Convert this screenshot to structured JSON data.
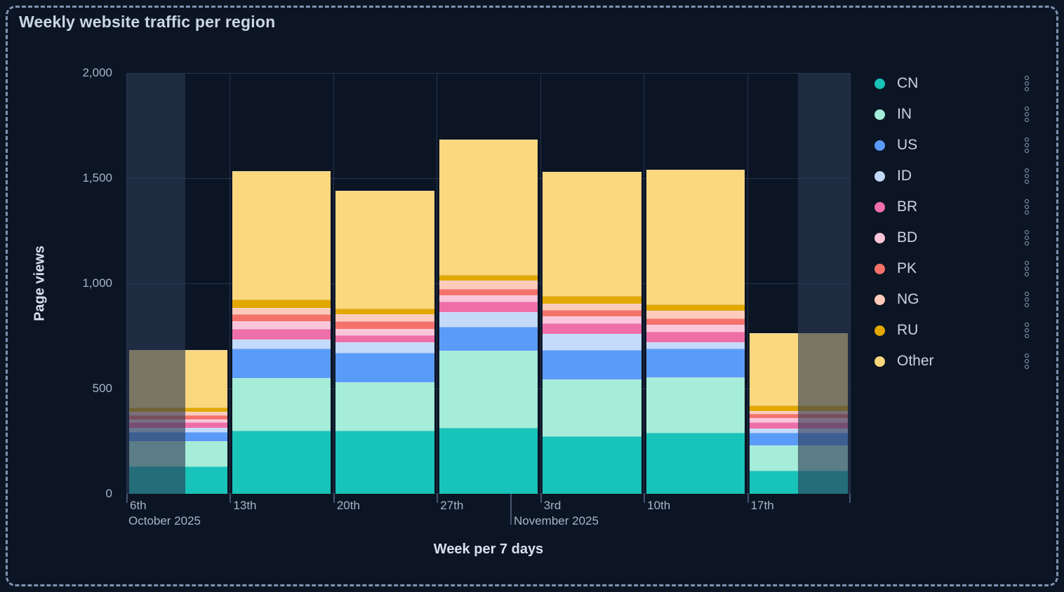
{
  "title": "Weekly website traffic per region",
  "panel": {
    "background": "#0c1524",
    "border_color": "#7e92b3",
    "grid_color": "#273350"
  },
  "y_axis": {
    "title": "Page views",
    "tick_labels": [
      "0",
      "500",
      "1,000",
      "1,500",
      "2,000"
    ]
  },
  "x_axis": {
    "title": "Week per 7 days",
    "month_labels": [
      "October 2025",
      "November 2025"
    ]
  },
  "legend": {
    "position": "right",
    "menu_icon": "kebab-vertical-dots"
  },
  "chart_data": {
    "type": "bar",
    "stacked": true,
    "title": "Weekly website traffic per region",
    "xlabel": "Week per 7 days",
    "ylabel": "Page views",
    "ylim": [
      0,
      2000
    ],
    "y_ticks": [
      0,
      500,
      1000,
      1500,
      2000
    ],
    "grid": true,
    "legend_position": "right",
    "categories": [
      "6th",
      "13th",
      "20th",
      "27th",
      "3rd",
      "10th",
      "17th"
    ],
    "month_labels": [
      "October 2025",
      "November 2025"
    ],
    "series": [
      {
        "name": "CN",
        "color": "#18c3b9",
        "values": [
          130,
          300,
          300,
          315,
          275,
          290,
          110
        ]
      },
      {
        "name": "IN",
        "color": "#a5ecd9",
        "values": [
          120,
          250,
          230,
          365,
          270,
          265,
          120
        ]
      },
      {
        "name": "US",
        "color": "#5b9bf8",
        "values": [
          45,
          140,
          140,
          115,
          140,
          135,
          60
        ]
      },
      {
        "name": "ID",
        "color": "#c3dafa",
        "values": [
          20,
          45,
          50,
          70,
          75,
          30,
          20
        ]
      },
      {
        "name": "BR",
        "color": "#ee6fa8",
        "values": [
          25,
          50,
          35,
          50,
          50,
          50,
          30
        ]
      },
      {
        "name": "BD",
        "color": "#fbc5da",
        "values": [
          15,
          35,
          30,
          30,
          35,
          35,
          20
        ]
      },
      {
        "name": "PK",
        "color": "#f5726b",
        "values": [
          20,
          35,
          35,
          30,
          30,
          30,
          20
        ]
      },
      {
        "name": "NG",
        "color": "#fecabb",
        "values": [
          15,
          30,
          35,
          40,
          30,
          35,
          15
        ]
      },
      {
        "name": "RU",
        "color": "#e2a800",
        "values": [
          20,
          40,
          25,
          25,
          35,
          30,
          25
        ]
      },
      {
        "name": "Other",
        "color": "#fbd77e",
        "values": [
          275,
          610,
          560,
          645,
          590,
          640,
          345
        ]
      }
    ],
    "totals": [
      685,
      1535,
      1440,
      1685,
      1530,
      1540,
      765
    ],
    "dimmed_ranges": [
      "first half of 6th week column",
      "second half of 17th week column"
    ]
  }
}
